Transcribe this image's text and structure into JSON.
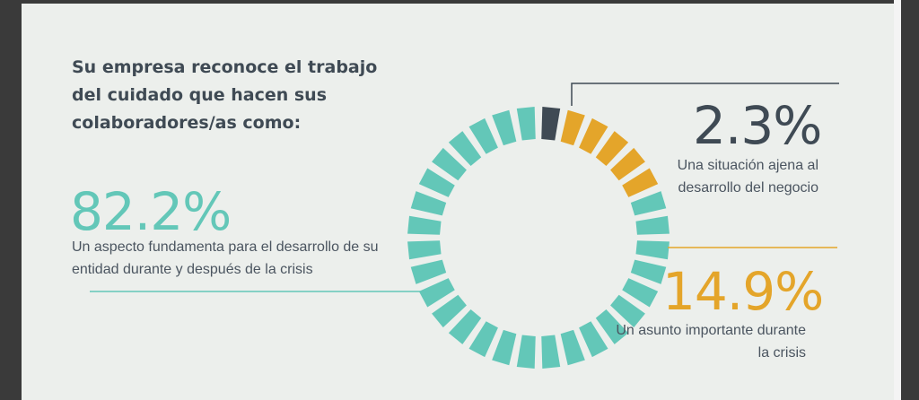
{
  "title": "Su empresa reconoce el trabajo del cuidado que hacen sus colaboradores/as como:",
  "colors": {
    "teal": "#63c7b8",
    "navy": "#3f4a54",
    "orange": "#e4a52a",
    "background": "#ecefec"
  },
  "chart_data": {
    "type": "pie",
    "title": "Su empresa reconoce el trabajo del cuidado que hacen sus colaboradores/as como:",
    "slices": [
      {
        "label": "Una situación ajena al desarrollo del negocio",
        "value": 2.3,
        "value_label": "2.3%",
        "color": "#3f4a54"
      },
      {
        "label": "Un asunto importante durante la crisis",
        "value": 14.9,
        "value_label": "14.9%",
        "color": "#e4a52a"
      },
      {
        "label": "Un aspecto fundamenta para el desarrollo de su entidad durante y después de la crisis",
        "value": 82.2,
        "value_label": "82.2%",
        "color": "#63c7b8"
      }
    ]
  }
}
